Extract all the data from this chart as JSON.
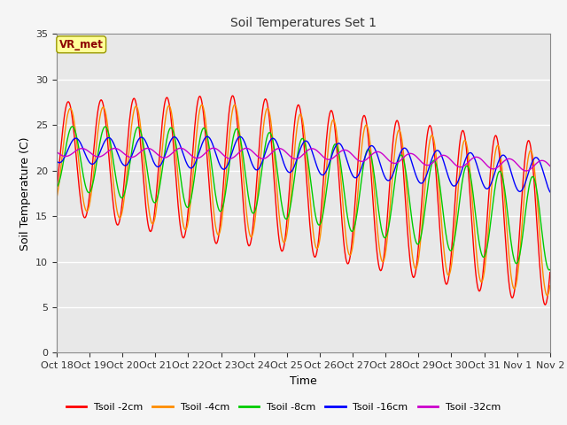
{
  "title": "Soil Temperatures Set 1",
  "xlabel": "Time",
  "ylabel": "Soil Temperature (C)",
  "annotation": "VR_met",
  "annotation_color": "#8B0000",
  "annotation_bg": "#FFFF99",
  "annotation_edge": "#999900",
  "ylim": [
    0,
    35
  ],
  "yticks": [
    0,
    5,
    10,
    15,
    20,
    25,
    30,
    35
  ],
  "xtick_labels": [
    "Oct 18",
    "Oct 19",
    "Oct 20",
    "Oct 21",
    "Oct 22",
    "Oct 23",
    "Oct 24",
    "Oct 25",
    "Oct 26",
    "Oct 27",
    "Oct 28",
    "Oct 29",
    "Oct 30",
    "Oct 31",
    "Nov 1",
    "Nov 2"
  ],
  "series_colors": [
    "#FF0000",
    "#FF8C00",
    "#00CC00",
    "#0000FF",
    "#CC00CC"
  ],
  "series_labels": [
    "Tsoil -2cm",
    "Tsoil -4cm",
    "Tsoil -8cm",
    "Tsoil -16cm",
    "Tsoil -32cm"
  ],
  "fig_bg_color": "#F5F5F5",
  "plot_bg_color": "#E8E8E8",
  "grid_color": "#FFFFFF",
  "n_days": 15,
  "pts_per_day": 48
}
